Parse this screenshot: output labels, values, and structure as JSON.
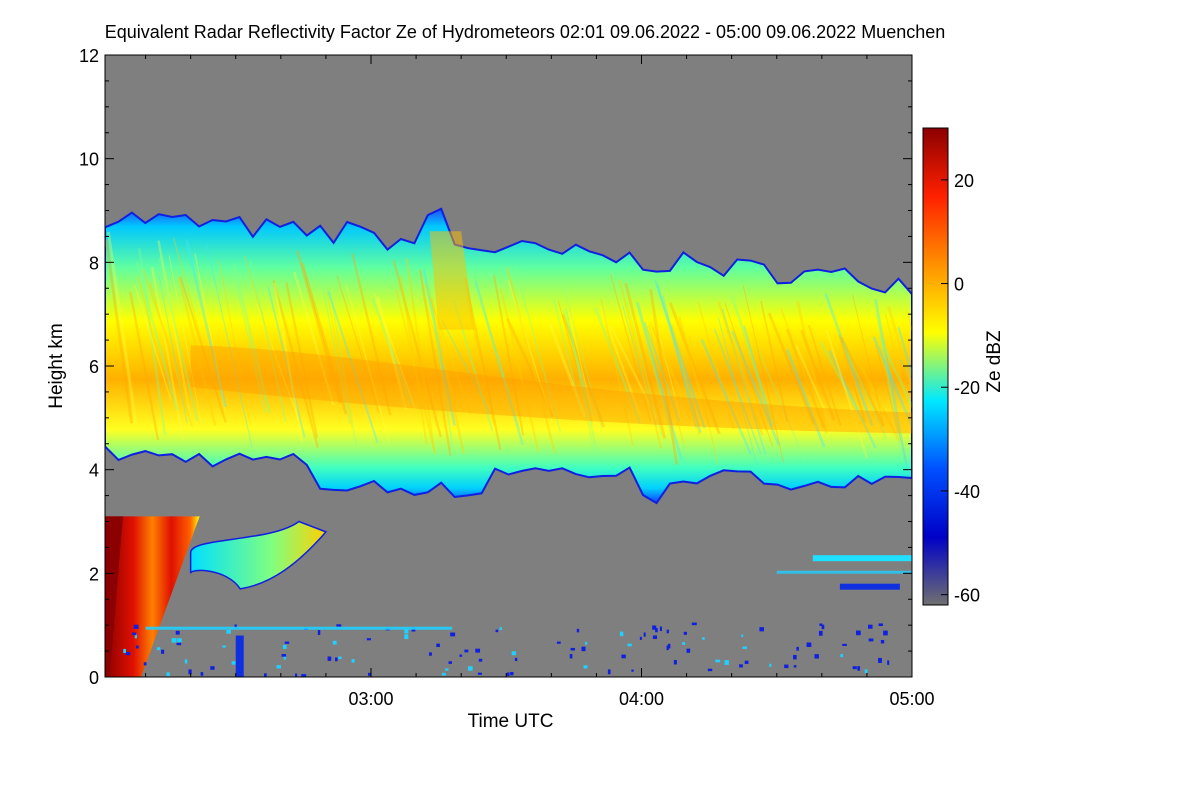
{
  "chart_data": {
    "type": "heatmap",
    "title": "Equivalent Radar Reflectivity Factor Ze of Hydrometeors   02:01 09.06.2022 - 05:00 09.06.2022 Muenchen",
    "xlabel": "Time UTC",
    "ylabel": "Height km",
    "xlim": [
      "02:01",
      "05:00"
    ],
    "ylim": [
      0,
      12
    ],
    "x_ticks": [
      "03:00",
      "04:00",
      "05:00"
    ],
    "y_ticks": [
      0,
      2,
      4,
      6,
      8,
      10,
      12
    ],
    "colorbar": {
      "label": "Ze dBZ",
      "range": [
        -62,
        30
      ],
      "ticks": [
        20,
        0,
        -20,
        -40,
        -60
      ],
      "colors": [
        "#707070",
        "#0000c8",
        "#0050ff",
        "#00e8ff",
        "#ffff00",
        "#ff9000",
        "#ff2000",
        "#8b0000"
      ]
    },
    "background_color": "#7f7f7f",
    "regions": [
      {
        "name": "upper cloud layer",
        "time_start": "02:01",
        "time_end": "05:00",
        "base_km": [
          4.3,
          3.7
        ],
        "top_km": [
          8.9,
          7.6
        ],
        "peak_dBZ": 5
      },
      {
        "name": "precipitation column",
        "time_start": "02:01",
        "time_end": "02:22",
        "base_km": 0,
        "top_km": 3.1,
        "peak_dBZ": 30
      },
      {
        "name": "mid-level patch",
        "time_start": "02:20",
        "time_end": "02:50",
        "base_km": 1.7,
        "top_km": 3.0,
        "peak_dBZ": -5
      },
      {
        "name": "low-level streaks",
        "time_start": "04:30",
        "time_end": "05:00",
        "base_km": 1.8,
        "top_km": 2.4,
        "peak_dBZ": -30
      }
    ]
  }
}
